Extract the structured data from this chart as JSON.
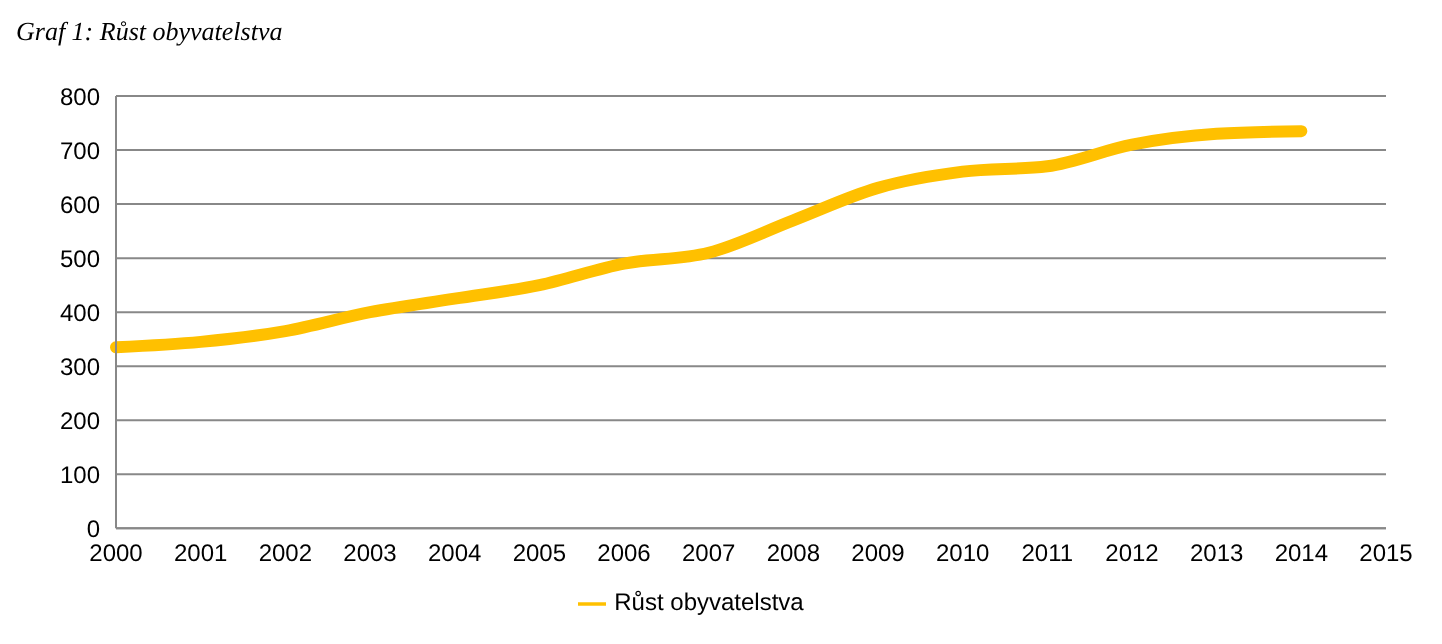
{
  "chart_data": {
    "type": "line",
    "title": "Graf 1: Růst obyvatelstva",
    "categories": [
      "2000",
      "2001",
      "2002",
      "2003",
      "2004",
      "2005",
      "2006",
      "2007",
      "2008",
      "2009",
      "2010",
      "2011",
      "2012",
      "2013",
      "2014",
      "2015"
    ],
    "series": [
      {
        "name": "Růst obyvatelstva",
        "color": "#ffc000",
        "values": [
          335,
          345,
          365,
          400,
          425,
          450,
          490,
          510,
          570,
          630,
          660,
          670,
          710,
          730,
          735,
          null
        ]
      }
    ],
    "ylim": [
      0,
      800
    ],
    "yticks": [
      0,
      100,
      200,
      300,
      400,
      500,
      600,
      700,
      800
    ],
    "grid": "y",
    "legend": "bottom",
    "marker": "none",
    "line_style": "solid"
  }
}
